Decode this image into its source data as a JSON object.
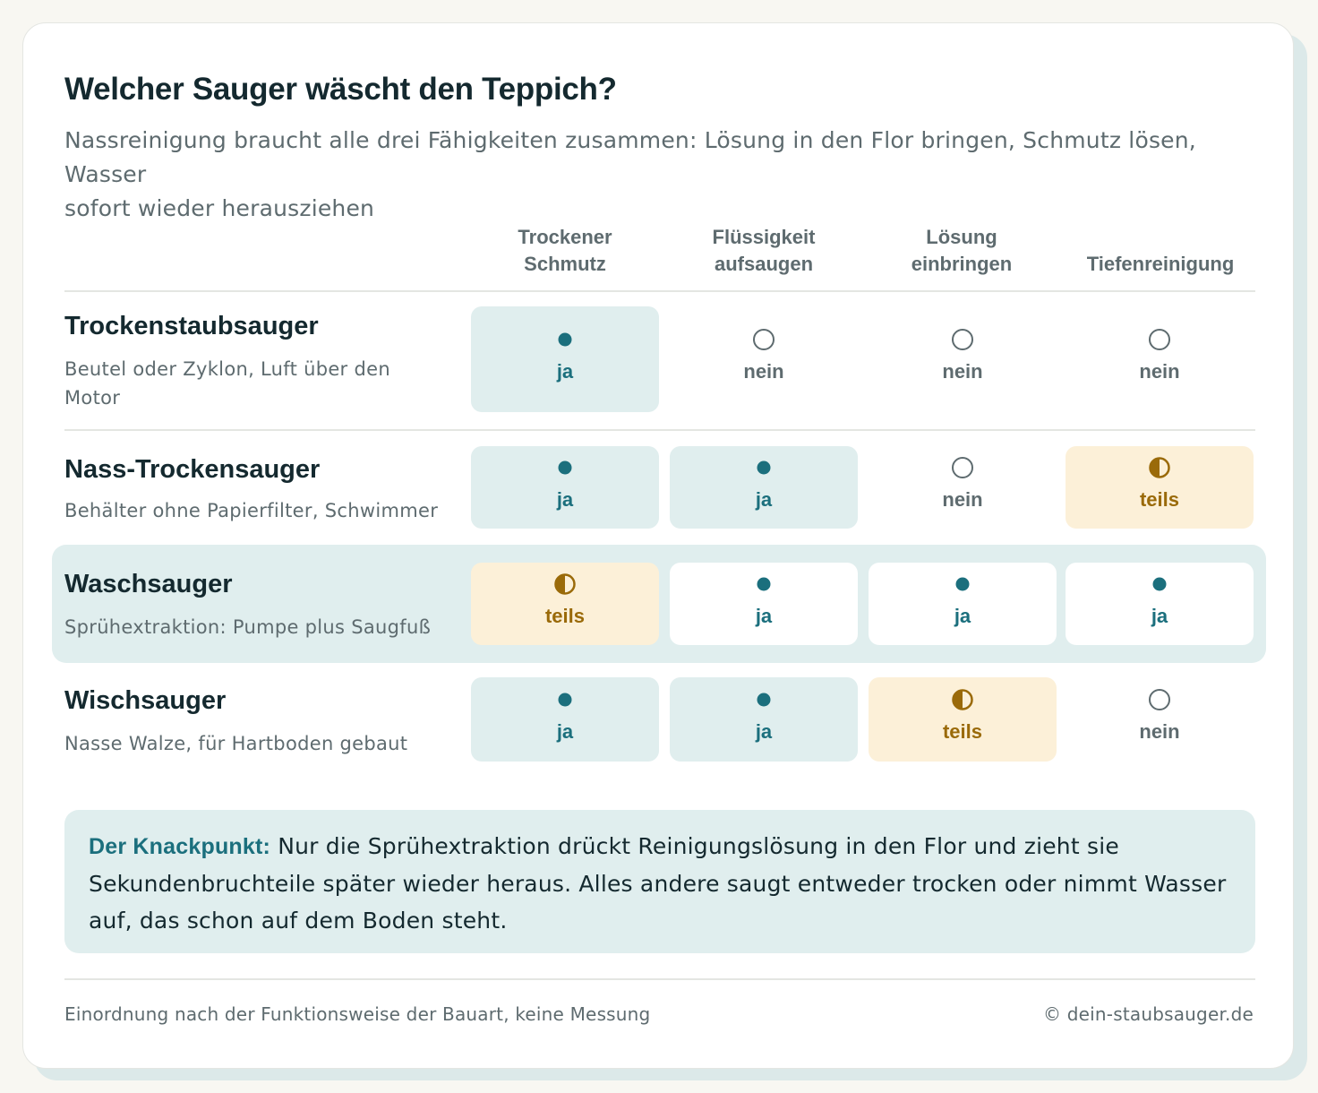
{
  "title": "Welcher Sauger wäscht den Teppich?",
  "subtitle": {
    "line1": "Nassreinigung braucht alle drei Fähigkeiten zusammen: Lösung in den Flor bringen, Schmutz lösen, Wasser",
    "line2": "sofort wieder herausziehen"
  },
  "columns": [
    {
      "line1": "Trockener",
      "line2": "Schmutz"
    },
    {
      "line1": "Flüssigkeit",
      "line2": "aufsaugen"
    },
    {
      "line1": "Lösung",
      "line2": "einbringen"
    },
    {
      "line1": "",
      "line2": "Tiefenreinigung"
    }
  ],
  "rows": [
    {
      "name": "Trockenstaubsauger",
      "desc_line1": "Beutel oder Zyklon, Luft über den",
      "desc_line2": "Motor",
      "highlighted": false,
      "cells": [
        {
          "status": "ja",
          "label": "ja"
        },
        {
          "status": "nein",
          "label": "nein"
        },
        {
          "status": "nein",
          "label": "nein"
        },
        {
          "status": "nein",
          "label": "nein"
        }
      ]
    },
    {
      "name": "Nass-Trockensauger",
      "desc_line1": "Behälter ohne Papierfilter, Schwimmer",
      "desc_line2": "",
      "highlighted": false,
      "cells": [
        {
          "status": "ja",
          "label": "ja"
        },
        {
          "status": "ja",
          "label": "ja"
        },
        {
          "status": "nein",
          "label": "nein"
        },
        {
          "status": "teils",
          "label": "teils"
        }
      ]
    },
    {
      "name": "Waschsauger",
      "desc_line1": "Sprühextraktion: Pumpe plus Saugfuß",
      "desc_line2": "",
      "highlighted": true,
      "cells": [
        {
          "status": "teils",
          "label": "teils"
        },
        {
          "status": "ja",
          "label": "ja"
        },
        {
          "status": "ja",
          "label": "ja"
        },
        {
          "status": "ja",
          "label": "ja"
        }
      ]
    },
    {
      "name": "Wischsauger",
      "desc_line1": "Nasse Walze, für Hartboden gebaut",
      "desc_line2": "",
      "highlighted": false,
      "cells": [
        {
          "status": "ja",
          "label": "ja"
        },
        {
          "status": "ja",
          "label": "ja"
        },
        {
          "status": "teils",
          "label": "teils"
        },
        {
          "status": "nein",
          "label": "nein"
        }
      ]
    }
  ],
  "callout": {
    "lead": "Der Knackpunkt:",
    "line1": " Nur die Sprühextraktion drückt Reinigungslösung in den Flor und zieht sie",
    "line2": "Sekundenbruchteile später wieder heraus. Alles andere saugt entweder trocken oder nimmt Wasser",
    "line3": "auf, das schon auf dem Boden steht."
  },
  "footer": {
    "note": "Einordnung nach der Funktionsweise der Bauart, keine Messung",
    "copyright": "© dein-staubsauger.de"
  },
  "colors": {
    "ja": "#1b6f7d",
    "nein": "#5e6b6f",
    "teils": "#9a6a09"
  },
  "icons": {
    "ja": "filled-dot-icon",
    "nein": "empty-circle-icon",
    "teils": "half-circle-icon"
  }
}
